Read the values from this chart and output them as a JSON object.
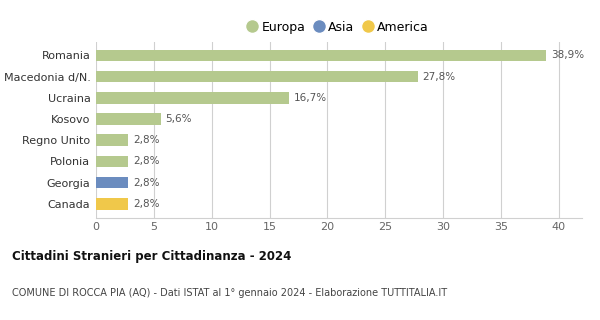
{
  "categories": [
    "Canada",
    "Georgia",
    "Polonia",
    "Regno Unito",
    "Kosovo",
    "Ucraina",
    "Macedonia d/N.",
    "Romania"
  ],
  "values": [
    2.8,
    2.8,
    2.8,
    2.8,
    5.6,
    16.7,
    27.8,
    38.9
  ],
  "colors": [
    "#f0c84a",
    "#6b8cbf",
    "#b5c98e",
    "#b5c98e",
    "#b5c98e",
    "#b5c98e",
    "#b5c98e",
    "#b5c98e"
  ],
  "labels": [
    "2,8%",
    "2,8%",
    "2,8%",
    "2,8%",
    "5,6%",
    "16,7%",
    "27,8%",
    "38,9%"
  ],
  "legend_labels": [
    "Europa",
    "Asia",
    "America"
  ],
  "legend_colors": [
    "#b5c98e",
    "#6b8cbf",
    "#f0c84a"
  ],
  "title": "Cittadini Stranieri per Cittadinanza - 2024",
  "subtitle": "COMUNE DI ROCCA PIA (AQ) - Dati ISTAT al 1° gennaio 2024 - Elaborazione TUTTITALIA.IT",
  "xlim": [
    0,
    42
  ],
  "xticks": [
    0,
    5,
    10,
    15,
    20,
    25,
    30,
    35,
    40
  ],
  "background_color": "#ffffff",
  "grid_color": "#d0d0d0"
}
